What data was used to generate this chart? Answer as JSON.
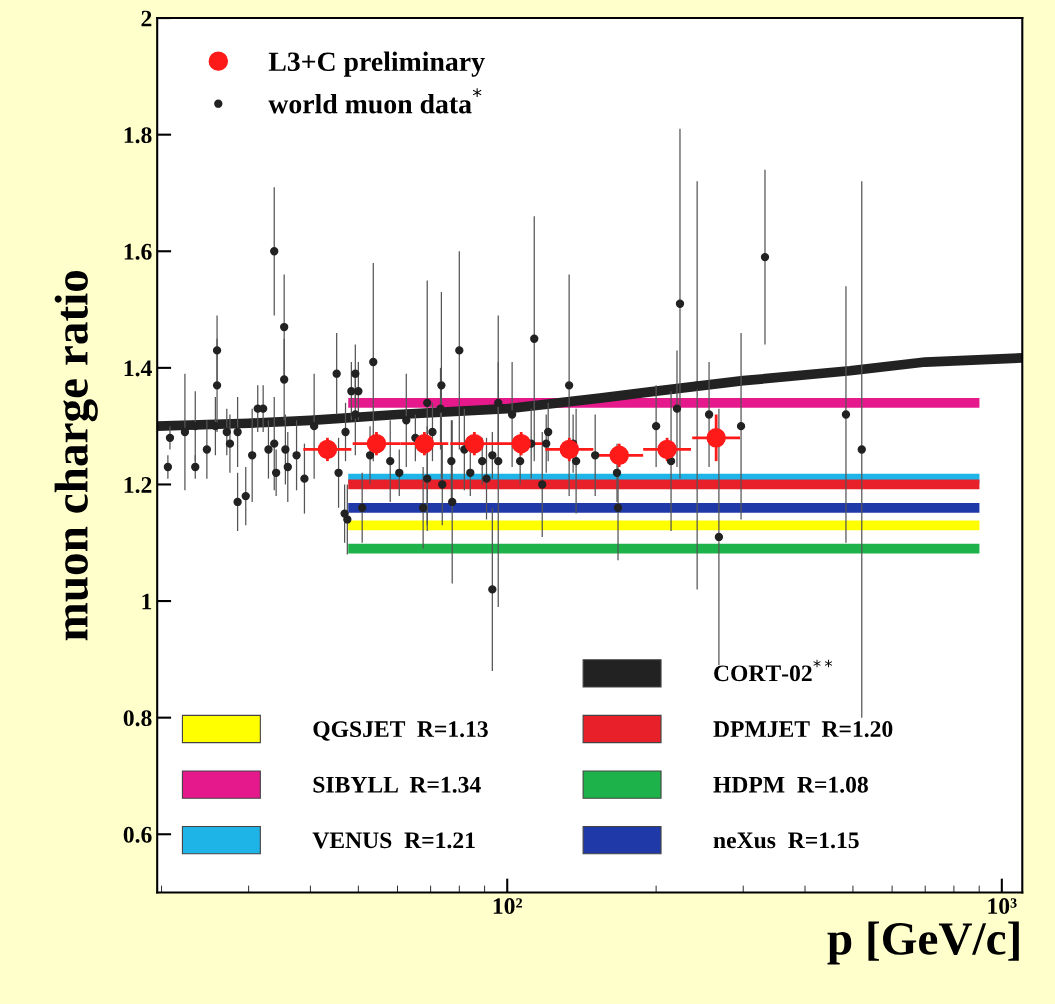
{
  "chart_data": {
    "type": "scatter",
    "xlabel": "p [GeV/c]",
    "ylabel": "muon charge ratio",
    "log": "x",
    "xlim": [
      19.6,
      1100
    ],
    "xticks": [
      {
        "value": 100,
        "label": "10²"
      },
      {
        "value": 1000,
        "label": "10³"
      }
    ],
    "ylim": [
      0.5,
      2
    ],
    "yticks": [
      0.6,
      0.8,
      {
        "value": 1,
        "label": "1"
      },
      1.2,
      1.4,
      1.6,
      1.8,
      {
        "value": 2,
        "label": "2"
      }
    ],
    "grid": false,
    "legend": "top left",
    "series": [
      {
        "name": "QGSJET  R=1.13",
        "type": "line",
        "color": "#ffff00",
        "x": [
          47.7,
          901
        ],
        "values": [
          1.13,
          1.13
        ]
      },
      {
        "name": "SIBYLL  R=1.34",
        "type": "line",
        "color": "#e6198c",
        "x": [
          47.7,
          901
        ],
        "values": [
          1.34,
          1.34
        ]
      },
      {
        "name": "VENUS  R=1.21",
        "type": "line",
        "color": "#1fb4e8",
        "x": [
          47.7,
          901
        ],
        "values": [
          1.21,
          1.21
        ]
      },
      {
        "name": "CORT-02$^{**}$",
        "type": "line",
        "color": "#222222",
        "x": [
          19.6,
          30,
          40,
          60,
          100,
          154,
          200,
          300,
          493,
          700,
          1100
        ],
        "values": [
          1.3,
          1.305,
          1.31,
          1.32,
          1.33,
          1.348,
          1.36,
          1.378,
          1.395,
          1.41,
          1.417
        ]
      },
      {
        "name": "DPMJET  R=1.20",
        "type": "line",
        "color": "#e8202a",
        "x": [
          47.7,
          901
        ],
        "values": [
          1.2,
          1.2
        ]
      },
      {
        "name": "HDPM  R=1.08",
        "type": "line",
        "color": "#1db34a",
        "x": [
          47.7,
          901
        ],
        "values": [
          1.09,
          1.09
        ]
      },
      {
        "name": "neXus  R=1.15",
        "type": "line",
        "color": "#1f3aa8",
        "x": [
          47.7,
          901
        ],
        "values": [
          1.16,
          1.16
        ]
      },
      {
        "name": "world muon data$^{*}$",
        "marker": "circle",
        "color": "#222222",
        "x": [
          20.6,
          20.8,
          22.3,
          23.4,
          23.4,
          24.7,
          25.9,
          25.9,
          25.7,
          27.1,
          27.5,
          28.5,
          28.5,
          29.6,
          30.5,
          31.3,
          32.1,
          32.9,
          33.8,
          35.4,
          35.4,
          33.8,
          34.1,
          35.6,
          36.0,
          37.5,
          38.9,
          40.7,
          45.2,
          45.6,
          46.9,
          47.5,
          47.1,
          48.4,
          49.3,
          50.0,
          49.3,
          53.6,
          52.8,
          58.0,
          50.9,
          60.5,
          62.5,
          65.2,
          68.9,
          68.9,
          67.6,
          70.6,
          73.6,
          73.3,
          73.9,
          77.1,
          77.4,
          80.0,
          81.9,
          84.2,
          89.0,
          90.8,
          93.3,
          93.3,
          95.9,
          95.9,
          102.3,
          106.2,
          111.8,
          113.4,
          119.9,
          121.0,
          117.7,
          133.4,
          135.9,
          137.8,
          150.6,
          166.7,
          167.5,
          200.0,
          220.4,
          223.5,
          214.4,
          242.1,
          255.9,
          267.9,
          297.0,
          332,
          484,
          521
        ],
        "values": [
          1.23,
          1.28,
          1.29,
          1.23,
          1.3,
          1.26,
          1.43,
          1.37,
          1.3,
          1.29,
          1.27,
          1.29,
          1.17,
          1.18,
          1.25,
          1.33,
          1.33,
          1.26,
          1.6,
          1.47,
          1.38,
          1.27,
          1.22,
          1.26,
          1.23,
          1.25,
          1.21,
          1.3,
          1.39,
          1.22,
          1.15,
          1.14,
          1.29,
          1.36,
          1.39,
          1.36,
          1.32,
          1.41,
          1.25,
          1.24,
          1.16,
          1.22,
          1.31,
          1.28,
          1.34,
          1.21,
          1.16,
          1.29,
          1.37,
          1.33,
          1.2,
          1.24,
          1.17,
          1.43,
          1.26,
          1.22,
          1.24,
          1.21,
          1.25,
          1.02,
          1.34,
          1.24,
          1.32,
          1.24,
          1.27,
          1.45,
          1.27,
          1.29,
          1.2,
          1.37,
          1.27,
          1.24,
          1.25,
          1.22,
          1.16,
          1.3,
          1.33,
          1.51,
          1.24,
          1.37,
          1.32,
          1.11,
          1.3,
          1.59,
          1.32,
          1.26
        ],
        "errors": [
          0.02,
          0.02,
          0.1,
          0.02,
          0.06,
          0.05,
          0.06,
          0.08,
          0.05,
          0.04,
          0.05,
          0.06,
          0.05,
          0.05,
          0.08,
          0.04,
          0.04,
          0.05,
          0.11,
          0.09,
          0.07,
          0.08,
          0.04,
          0.06,
          0.06,
          0.06,
          0.06,
          0.09,
          0.07,
          0.06,
          0.05,
          0.06,
          0.05,
          0.05,
          0.05,
          0.05,
          0.07,
          0.17,
          0.05,
          0.07,
          0.06,
          0.04,
          0.08,
          0.04,
          0.21,
          0.09,
          0.07,
          0.05,
          0.16,
          0.07,
          0.07,
          0.07,
          0.14,
          0.17,
          0.07,
          0.04,
          0.04,
          0.07,
          0.04,
          0.14,
          0.07,
          0.25,
          0.09,
          0.04,
          0.06,
          0.21,
          0.05,
          0.05,
          0.09,
          0.19,
          0.05,
          0.09,
          0.07,
          0.05,
          0.09,
          0.07,
          0.1,
          0.3,
          0.12,
          0.35,
          0.09,
          0.22,
          0.16,
          0.15,
          0.22,
          0.46
        ]
      },
      {
        "name": "L3+C preliminary",
        "marker": "circle",
        "color": "#ff1a1a",
        "x": [
          43.3,
          54.4,
          68,
          85.8,
          106.7,
          133.5,
          168.4,
          210.5,
          264.5
        ],
        "values": [
          1.26,
          1.27,
          1.27,
          1.27,
          1.27,
          1.26,
          1.25,
          1.26,
          1.28
        ],
        "errors": [
          0.02,
          0.02,
          0.02,
          0.02,
          0.02,
          0.02,
          0.02,
          0.02,
          0.04
        ],
        "xerrors": [
          [
            38.7,
            48.4
          ],
          [
            48.7,
            60.8
          ],
          [
            60.8,
            76
          ],
          [
            76.7,
            95.9
          ],
          [
            95.4,
            119.3
          ],
          [
            119.4,
            149.3
          ],
          [
            150.6,
            188.3
          ],
          [
            188.3,
            235.3
          ],
          [
            236.6,
            295.7
          ]
        ]
      }
    ]
  }
}
